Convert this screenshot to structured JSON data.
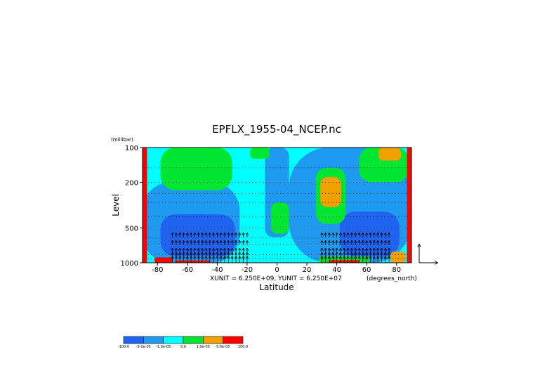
{
  "chart_data": {
    "type": "heatmap",
    "title": "EPFLX_1955-04_NCEP.nc",
    "xlabel": "Latitude",
    "ylabel": "Level",
    "y_units": "(millibar)",
    "x_units": "(degrees_north)",
    "unit_note": "XUNIT = 6.250E+09, YUNIT = 6.250E+07",
    "x_ticks": [
      "-80",
      "-60",
      "-40",
      "-20",
      "0",
      "20",
      "40",
      "60",
      "80"
    ],
    "x_tick_values": [
      -80,
      -60,
      -40,
      -20,
      0,
      20,
      40,
      60,
      80
    ],
    "y_ticks": [
      "100",
      "200",
      "500",
      "1000"
    ],
    "y_tick_values": [
      100,
      200,
      500,
      1000
    ],
    "xlim": [
      -90,
      90
    ],
    "ylim": [
      1000,
      100
    ],
    "y_scale": "log",
    "dotted_levels": [
      100,
      150,
      200,
      250,
      300,
      400,
      500,
      600,
      700,
      850,
      925,
      1000
    ],
    "colorbar": {
      "labels": [
        "-100.0",
        "-5.0e-05",
        "-1.0e-05",
        "0.0",
        "1.0e-05",
        "5.0e-05",
        "100.0"
      ],
      "colors": [
        "#1e64f0",
        "#1e9bf0",
        "#00ffff",
        "#00e632",
        "#f0a000",
        "#ff0000"
      ]
    },
    "regions": [
      {
        "name": "base",
        "level": 2
      },
      {
        "name": "lowlat-blue-upper",
        "level": 1,
        "lat": [
          -8,
          8
        ],
        "p": [
          100,
          600
        ]
      },
      {
        "name": "nh-blue-mid",
        "level": 1,
        "lat": [
          8,
          90
        ],
        "p": [
          100,
          1000
        ]
      },
      {
        "name": "sh-blue-mid",
        "level": 1,
        "lat": [
          -90,
          -25
        ],
        "p": [
          200,
          1000
        ]
      },
      {
        "name": "sh-deepblue",
        "level": 0,
        "lat": [
          -78,
          -28
        ],
        "p": [
          380,
          880
        ]
      },
      {
        "name": "nh-deepblue",
        "level": 0,
        "lat": [
          42,
          82
        ],
        "p": [
          360,
          880
        ]
      },
      {
        "name": "sh-green-top",
        "level": 3,
        "lat": [
          -78,
          -30
        ],
        "p": [
          100,
          235
        ]
      },
      {
        "name": "sh-green-top2",
        "level": 3,
        "lat": [
          -18,
          -5
        ],
        "p": [
          100,
          125
        ]
      },
      {
        "name": "eq-green",
        "level": 3,
        "lat": [
          -4,
          8
        ],
        "p": [
          300,
          560
        ]
      },
      {
        "name": "nh-green-jet",
        "level": 3,
        "lat": [
          26,
          46
        ],
        "p": [
          150,
          460
        ]
      },
      {
        "name": "nh-orange-jet",
        "level": 4,
        "lat": [
          29,
          43
        ],
        "p": [
          180,
          330
        ]
      },
      {
        "name": "nh-green-pole",
        "level": 3,
        "lat": [
          55,
          88
        ],
        "p": [
          100,
          200
        ]
      },
      {
        "name": "nh-orange-pole",
        "level": 4,
        "lat": [
          68,
          83
        ],
        "p": [
          100,
          130
        ]
      },
      {
        "name": "nh-sfc-green",
        "level": 3,
        "lat": [
          28,
          62
        ],
        "p": [
          880,
          1000
        ]
      },
      {
        "name": "nh-sfc-red",
        "level": 5,
        "lat": [
          35,
          55
        ],
        "p": [
          950,
          1000
        ]
      },
      {
        "name": "sh-sfc-red1",
        "level": 5,
        "lat": [
          -82,
          -70
        ],
        "p": [
          900,
          1000
        ]
      },
      {
        "name": "sh-sfc-red2",
        "level": 5,
        "lat": [
          -68,
          -45
        ],
        "p": [
          955,
          1000
        ]
      },
      {
        "name": "sh-pole-red",
        "level": 5,
        "lat": [
          -90,
          -87
        ],
        "p": [
          100,
          1000
        ]
      },
      {
        "name": "nh-pole-red",
        "level": 5,
        "lat": [
          87,
          90
        ],
        "p": [
          100,
          1000
        ]
      },
      {
        "name": "nh-orange-sfc",
        "level": 4,
        "lat": [
          76,
          86
        ],
        "p": [
          800,
          1000
        ]
      }
    ],
    "arrows_visible": true,
    "reference_vector": "shown at lower right"
  }
}
